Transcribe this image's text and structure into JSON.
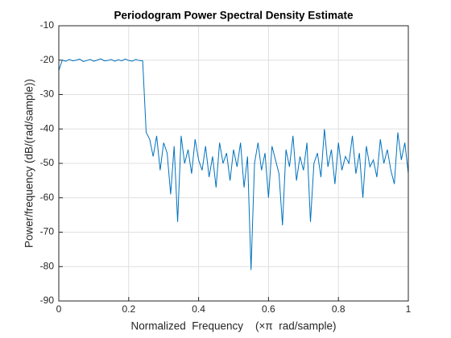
{
  "chart_data": {
    "type": "line",
    "title": "Periodogram Power Spectral Density Estimate",
    "xlabel": "Normalized  Frequency    (×π  rad/sample)",
    "ylabel": "Power/frequency (dB/(rad/sample))",
    "x": [
      0,
      0.01,
      0.02,
      0.03,
      0.04,
      0.05,
      0.06,
      0.07,
      0.08,
      0.09,
      0.1,
      0.11,
      0.12,
      0.13,
      0.14,
      0.15,
      0.16,
      0.17,
      0.18,
      0.19,
      0.2,
      0.21,
      0.22,
      0.23,
      0.24,
      0.25,
      0.26,
      0.27,
      0.28,
      0.29,
      0.3,
      0.31,
      0.32,
      0.33,
      0.34,
      0.35,
      0.36,
      0.37,
      0.38,
      0.39,
      0.4,
      0.41,
      0.42,
      0.43,
      0.44,
      0.45,
      0.46,
      0.47,
      0.48,
      0.49,
      0.5,
      0.51,
      0.52,
      0.53,
      0.54,
      0.55,
      0.56,
      0.57,
      0.58,
      0.59,
      0.6,
      0.61,
      0.62,
      0.63,
      0.64,
      0.65,
      0.66,
      0.67,
      0.68,
      0.69,
      0.7,
      0.71,
      0.72,
      0.73,
      0.74,
      0.75,
      0.76,
      0.77,
      0.78,
      0.79,
      0.8,
      0.81,
      0.82,
      0.83,
      0.84,
      0.85,
      0.86,
      0.87,
      0.88,
      0.89,
      0.9,
      0.91,
      0.92,
      0.93,
      0.94,
      0.95,
      0.96,
      0.97,
      0.98,
      0.99,
      1
    ],
    "series": [
      {
        "color": "#0072bd",
        "values": [
          -23,
          -20,
          -20.3,
          -19.8,
          -20.2,
          -20,
          -19.7,
          -20.4,
          -20.1,
          -19.8,
          -20.3,
          -20,
          -19.6,
          -20.2,
          -20.1,
          -19.8,
          -20.3,
          -19.9,
          -20.2,
          -19.7,
          -20.1,
          -20.3,
          -19.8,
          -20.1,
          -20.2,
          -41,
          -43,
          -48,
          -42,
          -52,
          -44,
          -47,
          -59,
          -45,
          -67,
          -42,
          -50,
          -46,
          -53,
          -43,
          -49,
          -52,
          -45,
          -54,
          -48,
          -57,
          -44,
          -50,
          -47,
          -55,
          -46,
          -51,
          -44,
          -57,
          -48,
          -81,
          -50,
          -44,
          -52,
          -47,
          -60,
          -45,
          -49,
          -53,
          -68,
          -46,
          -51,
          -42,
          -55,
          -48,
          -52,
          -44,
          -67,
          -50,
          -47,
          -54,
          -40,
          -51,
          -46,
          -56,
          -44,
          -52,
          -48,
          -50,
          -42,
          -53,
          -47,
          -60,
          -45,
          -51,
          -49,
          -54,
          -43,
          -50,
          -46,
          -52,
          -56,
          -41,
          -49,
          -44,
          -53
        ]
      }
    ],
    "xlim": [
      0,
      1
    ],
    "ylim": [
      -90,
      -10
    ],
    "xticks": [
      0,
      0.2,
      0.4,
      0.6,
      0.8,
      1
    ],
    "yticks": [
      -90,
      -80,
      -70,
      -60,
      -50,
      -40,
      -30,
      -20,
      -10
    ],
    "grid": true
  }
}
